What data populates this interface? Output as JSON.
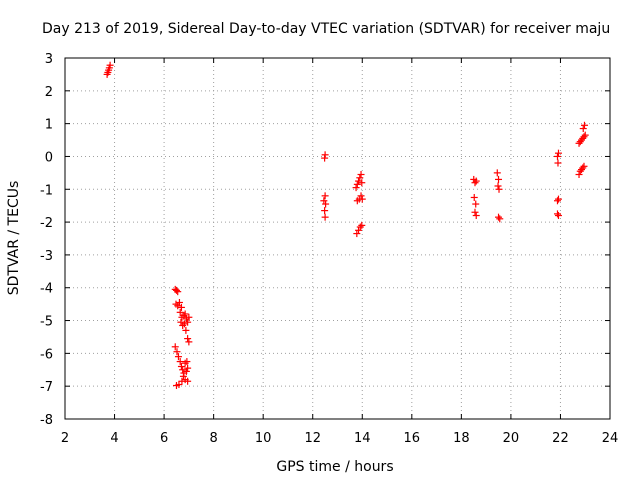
{
  "chart_data": {
    "type": "scatter",
    "title": "Day 213 of 2019, Sidereal Day-to-day VTEC variation (SDTVAR) for receiver maju",
    "xlabel": "GPS time / hours",
    "ylabel": "SDTVAR / TECUs",
    "xlim": [
      2,
      24
    ],
    "ylim": [
      -8,
      3
    ],
    "x_ticks": [
      "2",
      "4",
      "6",
      "8",
      "10",
      "12",
      "14",
      "16",
      "18",
      "20",
      "22",
      "24"
    ],
    "y_ticks": [
      "3",
      "2",
      "1",
      "0",
      "-1",
      "-2",
      "-3",
      "-4",
      "-5",
      "-6",
      "-7",
      "-8"
    ],
    "grid": true,
    "marker": "plus",
    "series_color": "#ff0000",
    "points": [
      [
        3.7,
        2.5
      ],
      [
        3.73,
        2.56
      ],
      [
        3.76,
        2.63
      ],
      [
        3.79,
        2.7
      ],
      [
        3.82,
        2.78
      ],
      [
        6.45,
        -4.05
      ],
      [
        6.5,
        -4.08
      ],
      [
        6.55,
        -4.12
      ],
      [
        6.48,
        -4.5
      ],
      [
        6.55,
        -4.55
      ],
      [
        6.62,
        -4.45
      ],
      [
        6.7,
        -4.6
      ],
      [
        6.65,
        -4.75
      ],
      [
        6.72,
        -4.9
      ],
      [
        6.68,
        -5.05
      ],
      [
        6.75,
        -5.15
      ],
      [
        6.8,
        -4.85
      ],
      [
        6.85,
        -4.8
      ],
      [
        6.9,
        -4.95
      ],
      [
        6.95,
        -5.05
      ],
      [
        7.0,
        -4.9
      ],
      [
        6.88,
        -5.3
      ],
      [
        6.95,
        -5.55
      ],
      [
        7.0,
        -5.65
      ],
      [
        6.82,
        -5.1
      ],
      [
        6.45,
        -5.8
      ],
      [
        6.52,
        -5.95
      ],
      [
        6.58,
        -6.1
      ],
      [
        6.65,
        -6.25
      ],
      [
        6.7,
        -6.4
      ],
      [
        6.75,
        -6.5
      ],
      [
        6.8,
        -6.6
      ],
      [
        6.85,
        -6.3
      ],
      [
        6.92,
        -6.25
      ],
      [
        6.95,
        -6.45
      ],
      [
        6.78,
        -6.7
      ],
      [
        6.72,
        -6.85
      ],
      [
        6.6,
        -6.95
      ],
      [
        6.5,
        -6.98
      ],
      [
        6.85,
        -6.8
      ],
      [
        6.95,
        -6.85
      ],
      [
        6.9,
        -6.55
      ],
      [
        12.48,
        -0.05
      ],
      [
        12.5,
        0.05
      ],
      [
        12.45,
        -1.35
      ],
      [
        12.5,
        -1.2
      ],
      [
        12.52,
        -1.45
      ],
      [
        12.48,
        -1.65
      ],
      [
        12.5,
        -1.85
      ],
      [
        13.75,
        -0.95
      ],
      [
        13.8,
        -0.85
      ],
      [
        13.85,
        -0.75
      ],
      [
        13.9,
        -0.65
      ],
      [
        13.95,
        -0.55
      ],
      [
        13.98,
        -0.8
      ],
      [
        13.8,
        -1.35
      ],
      [
        13.88,
        -1.3
      ],
      [
        13.95,
        -1.2
      ],
      [
        14.0,
        -1.3
      ],
      [
        13.78,
        -2.35
      ],
      [
        13.85,
        -2.25
      ],
      [
        13.92,
        -2.15
      ],
      [
        13.98,
        -2.1
      ],
      [
        18.5,
        -0.7
      ],
      [
        18.55,
        -0.8
      ],
      [
        18.6,
        -0.75
      ],
      [
        18.52,
        -1.25
      ],
      [
        18.58,
        -1.45
      ],
      [
        18.55,
        -1.7
      ],
      [
        18.6,
        -1.8
      ],
      [
        19.45,
        -0.5
      ],
      [
        19.5,
        -0.7
      ],
      [
        19.48,
        -0.9
      ],
      [
        19.52,
        -1.0
      ],
      [
        19.5,
        -1.85
      ],
      [
        19.55,
        -1.9
      ],
      [
        21.88,
        0.0
      ],
      [
        21.92,
        0.1
      ],
      [
        21.9,
        -0.2
      ],
      [
        21.88,
        -1.35
      ],
      [
        21.92,
        -1.3
      ],
      [
        21.88,
        -1.75
      ],
      [
        21.92,
        -1.8
      ],
      [
        22.75,
        -0.55
      ],
      [
        22.8,
        -0.45
      ],
      [
        22.85,
        -0.4
      ],
      [
        22.9,
        -0.35
      ],
      [
        22.95,
        -0.3
      ],
      [
        22.75,
        0.4
      ],
      [
        22.8,
        0.45
      ],
      [
        22.85,
        0.5
      ],
      [
        22.9,
        0.55
      ],
      [
        22.95,
        0.6
      ],
      [
        23.0,
        0.65
      ],
      [
        22.92,
        0.85
      ],
      [
        22.97,
        0.95
      ]
    ]
  }
}
